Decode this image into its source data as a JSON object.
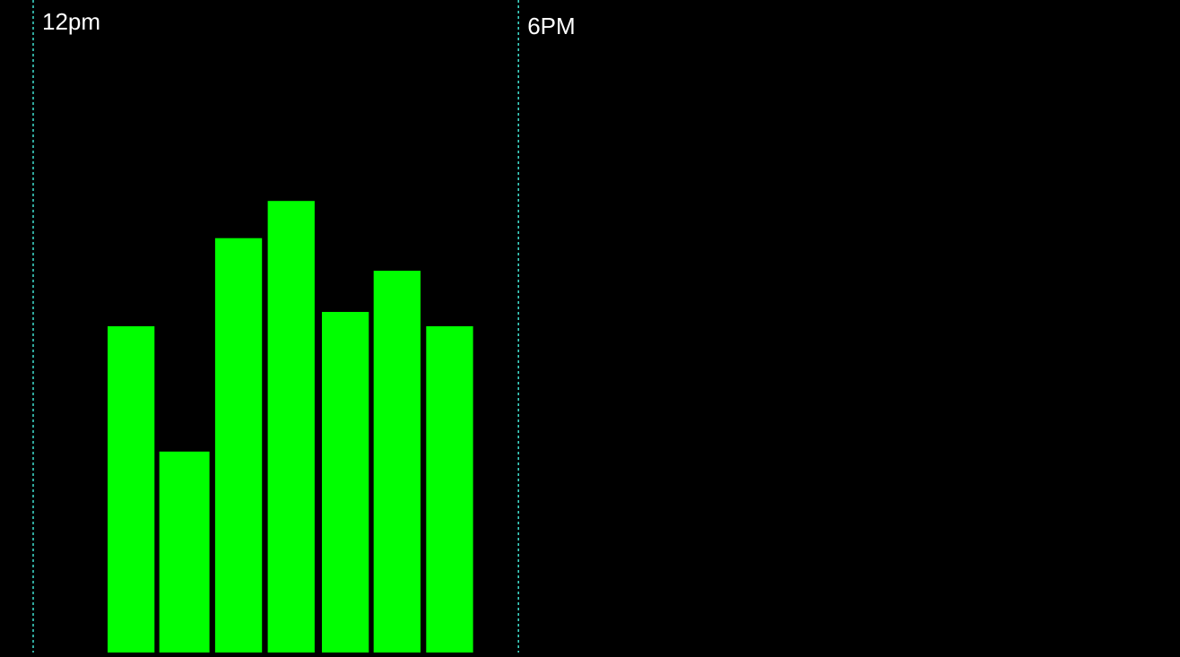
{
  "chart_data": {
    "type": "bar",
    "x_unit": "hour",
    "x_domain": [
      8.59,
      23.18
    ],
    "y_domain": [
      0,
      1
    ],
    "bars": [
      {
        "x_start": 9.92,
        "x_end": 10.5,
        "value": 0.5
      },
      {
        "x_start": 10.56,
        "x_end": 11.18,
        "value": 0.308
      },
      {
        "x_start": 11.25,
        "x_end": 11.83,
        "value": 0.635
      },
      {
        "x_start": 11.9,
        "x_end": 12.48,
        "value": 0.692
      },
      {
        "x_start": 12.57,
        "x_end": 13.15,
        "value": 0.522
      },
      {
        "x_start": 13.21,
        "x_end": 13.79,
        "value": 0.585
      },
      {
        "x_start": 13.86,
        "x_end": 14.44,
        "value": 0.5
      }
    ],
    "reference_lines": [
      {
        "x": 9.0,
        "label": "12pm"
      },
      {
        "x": 15.0,
        "label": "6PM"
      }
    ],
    "grid": false,
    "legend": "none"
  },
  "colors": {
    "background": "#000000",
    "bar": "#00ff00",
    "reference_line": "#40e0d0",
    "label_text": "#ffffff"
  }
}
